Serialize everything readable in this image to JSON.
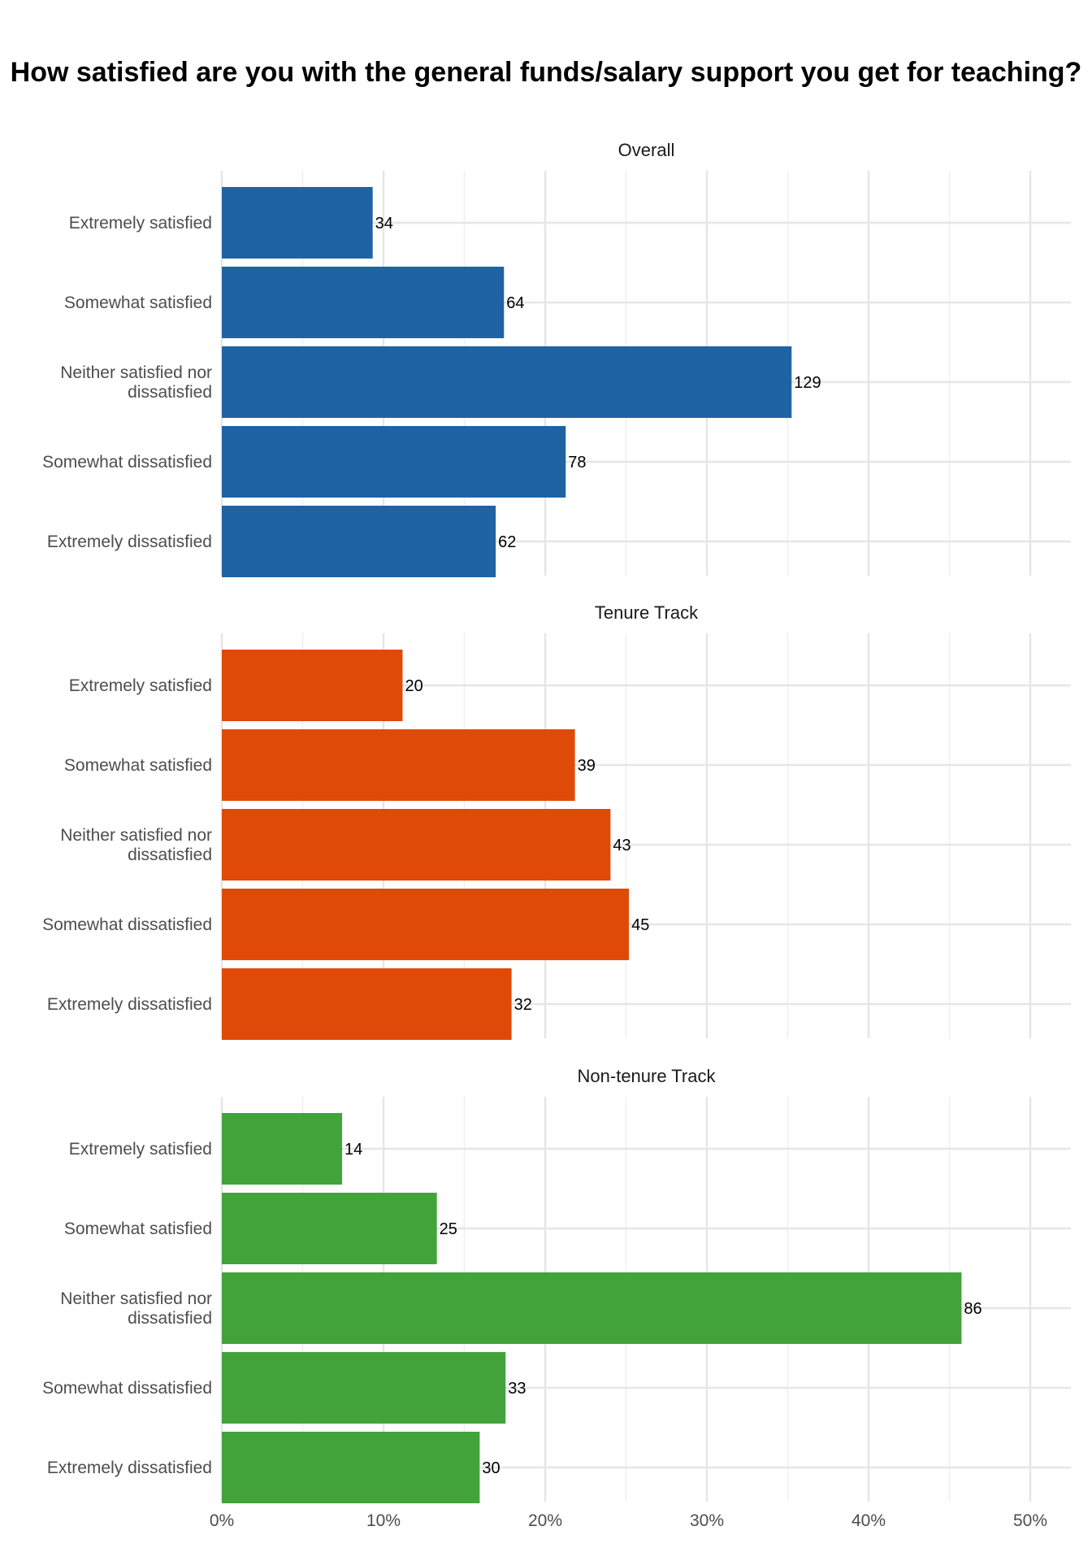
{
  "chart_data": {
    "type": "bar",
    "orientation": "horizontal",
    "title": "How satisfied are you with the general funds/salary support you get for teaching?",
    "categories": [
      "Extremely satisfied",
      "Somewhat satisfied",
      "Neither satisfied nor dissatisfied",
      "Somewhat dissatisfied",
      "Extremely dissatisfied"
    ],
    "xlim": [
      0,
      0.525
    ],
    "x_ticks": [
      "0%",
      "10%",
      "20%",
      "30%",
      "40%",
      "50%"
    ],
    "x_tick_values": [
      0,
      0.1,
      0.2,
      0.3,
      0.4,
      0.5
    ],
    "grid": true,
    "legend": "none",
    "panels": [
      {
        "title": "Overall",
        "color": "#1f63a5",
        "percent": [
          0.0933,
          0.1745,
          0.3524,
          0.2127,
          0.1694
        ],
        "counts": [
          34,
          64,
          129,
          78,
          62
        ]
      },
      {
        "title": "Tenure Track",
        "color": "#e04a09",
        "percent": [
          0.1118,
          0.2184,
          0.2404,
          0.2518,
          0.1792
        ],
        "counts": [
          20,
          39,
          43,
          45,
          32
        ]
      },
      {
        "title": "Non-tenure Track",
        "color": "#42a33a",
        "percent": [
          0.0744,
          0.133,
          0.4575,
          0.1755,
          0.1595
        ],
        "counts": [
          14,
          25,
          86,
          33,
          30
        ]
      }
    ]
  }
}
